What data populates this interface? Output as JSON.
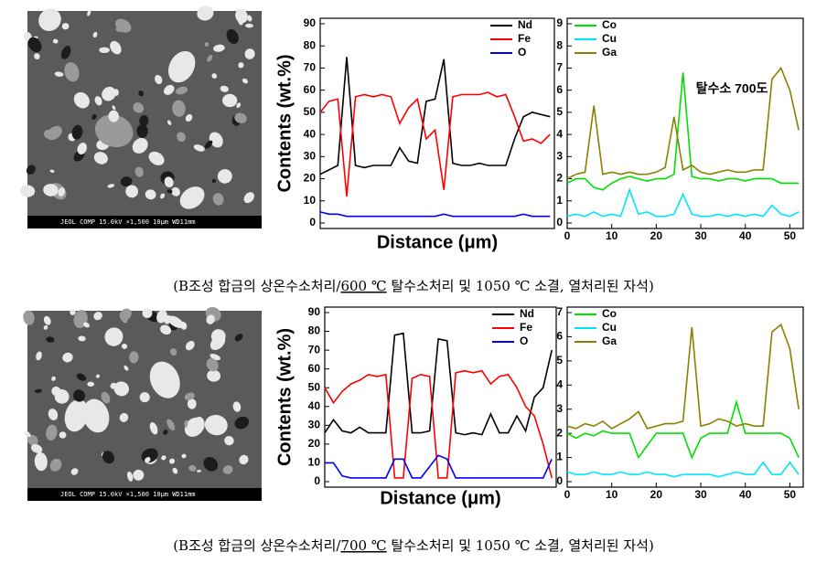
{
  "figure": {
    "sem_images": [
      {
        "label": "JEOL COMP 15.0kV ×1,500 10μm WD11mm"
      },
      {
        "label": "JEOL COMP 15.0kV ×1,500 10μm WD11mm"
      }
    ],
    "captions": [
      {
        "before": "(B조성 합금의 상온수소처리/",
        "underlined": "600 ℃",
        "after": " 탈수소처리 및 1050 ℃ 소결, 열처리된 자석)"
      },
      {
        "before": "(B조성 합금의 상온수소처리/",
        "underlined": "700 ℃",
        "after": " 탈수소처리 및 1050 ℃ 소결, 열처리된 자석)"
      }
    ]
  },
  "chart_data": [
    {
      "type": "line",
      "ylabel": "Contents (wt.%)",
      "xlabel": "Distance (μm)",
      "legend": "upper right",
      "xlim": [
        0,
        53
      ],
      "ylim": [
        0,
        90
      ],
      "yticks": [
        0,
        10,
        20,
        30,
        40,
        50,
        60,
        70,
        80,
        90
      ],
      "x": [
        0,
        2,
        4,
        6,
        8,
        10,
        12,
        14,
        16,
        18,
        20,
        22,
        24,
        26,
        28,
        30,
        32,
        34,
        36,
        38,
        40,
        42,
        44,
        46,
        48,
        50,
        52
      ],
      "series": [
        {
          "name": "Nd",
          "color": "#000000",
          "values": [
            22,
            24,
            26,
            75,
            26,
            25,
            26,
            26,
            26,
            34,
            28,
            27,
            55,
            56,
            74,
            27,
            26,
            26,
            27,
            26,
            26,
            26,
            38,
            48,
            50,
            49,
            48
          ]
        },
        {
          "name": "Fe",
          "color": "#ff0000",
          "values": [
            50,
            55,
            56,
            12,
            57,
            58,
            57,
            58,
            57,
            45,
            52,
            56,
            38,
            42,
            15,
            57,
            58,
            58,
            58,
            59,
            57,
            58,
            48,
            37,
            38,
            36,
            40
          ]
        },
        {
          "name": "O",
          "color": "#0000ff",
          "values": [
            5,
            4,
            4,
            3,
            3,
            3,
            3,
            3,
            3,
            3,
            3,
            3,
            3,
            3,
            4,
            3,
            3,
            3,
            3,
            3,
            3,
            3,
            3,
            4,
            3,
            3,
            3
          ]
        }
      ]
    },
    {
      "type": "line",
      "legend": "upper left",
      "annotation": "탈수소 700도",
      "xlim": [
        0,
        53
      ],
      "xticks": [
        0,
        10,
        20,
        30,
        40,
        50
      ],
      "ylim": [
        0,
        9
      ],
      "yticks": [
        0,
        1,
        2,
        3,
        4,
        5,
        6,
        7,
        8,
        9
      ],
      "x": [
        0,
        2,
        4,
        6,
        8,
        10,
        12,
        14,
        16,
        18,
        20,
        22,
        24,
        26,
        28,
        30,
        32,
        34,
        36,
        38,
        40,
        42,
        44,
        46,
        48,
        50,
        52
      ],
      "series": [
        {
          "name": "Co",
          "color": "#00e000",
          "values": [
            1.8,
            2.0,
            2.0,
            1.6,
            1.5,
            1.8,
            2.0,
            2.1,
            2.0,
            1.9,
            2.0,
            2.0,
            2.2,
            6.8,
            2.1,
            2.0,
            2.0,
            1.9,
            2.0,
            2.0,
            1.9,
            2.0,
            2.0,
            2.0,
            1.8,
            1.8,
            1.8
          ]
        },
        {
          "name": "Cu",
          "color": "#00e5ff",
          "values": [
            0.3,
            0.4,
            0.3,
            0.5,
            0.3,
            0.4,
            0.3,
            1.5,
            0.4,
            0.5,
            0.3,
            0.3,
            0.4,
            1.3,
            0.4,
            0.3,
            0.3,
            0.4,
            0.3,
            0.4,
            0.3,
            0.4,
            0.3,
            0.8,
            0.4,
            0.3,
            0.5
          ]
        },
        {
          "name": "Ga",
          "color": "#8b8000",
          "values": [
            2.0,
            2.2,
            2.3,
            5.3,
            2.2,
            2.3,
            2.2,
            2.3,
            2.2,
            2.2,
            2.3,
            2.5,
            4.8,
            2.4,
            2.6,
            2.3,
            2.2,
            2.3,
            2.4,
            2.3,
            2.3,
            2.4,
            2.4,
            6.5,
            7.0,
            6.0,
            4.2
          ]
        }
      ]
    },
    {
      "type": "line",
      "ylabel": "Contents (wt.%)",
      "xlabel": "Distance (μm)",
      "legend": "upper right",
      "xlim": [
        0,
        53
      ],
      "ylim": [
        0,
        90
      ],
      "yticks": [
        0,
        10,
        20,
        30,
        40,
        50,
        60,
        70,
        80,
        90
      ],
      "x": [
        0,
        2,
        4,
        6,
        8,
        10,
        12,
        14,
        16,
        18,
        20,
        22,
        24,
        26,
        28,
        30,
        32,
        34,
        36,
        38,
        40,
        42,
        44,
        46,
        48,
        50,
        52
      ],
      "series": [
        {
          "name": "Nd",
          "color": "#000000",
          "values": [
            26,
            33,
            27,
            26,
            29,
            26,
            26,
            26,
            78,
            79,
            26,
            26,
            27,
            76,
            75,
            26,
            25,
            26,
            25,
            36,
            26,
            26,
            35,
            27,
            45,
            50,
            70
          ]
        },
        {
          "name": "Fe",
          "color": "#ff0000",
          "values": [
            50,
            42,
            48,
            52,
            54,
            57,
            56,
            57,
            2,
            2,
            55,
            57,
            56,
            2,
            2,
            58,
            59,
            58,
            59,
            52,
            56,
            57,
            50,
            40,
            35,
            20,
            2
          ]
        },
        {
          "name": "O",
          "color": "#0000ff",
          "values": [
            10,
            10,
            3,
            2,
            2,
            2,
            2,
            2,
            12,
            12,
            2,
            2,
            8,
            14,
            12,
            2,
            2,
            2,
            2,
            2,
            2,
            2,
            2,
            2,
            2,
            2,
            12
          ]
        }
      ]
    },
    {
      "type": "line",
      "legend": "upper left",
      "xlim": [
        0,
        53
      ],
      "xticks": [
        0,
        10,
        20,
        30,
        40,
        50
      ],
      "ylim": [
        0,
        7
      ],
      "yticks": [
        0,
        1,
        2,
        3,
        4,
        5,
        6,
        7
      ],
      "x": [
        0,
        2,
        4,
        6,
        8,
        10,
        12,
        14,
        16,
        18,
        20,
        22,
        24,
        26,
        28,
        30,
        32,
        34,
        36,
        38,
        40,
        42,
        44,
        46,
        48,
        50,
        52
      ],
      "series": [
        {
          "name": "Co",
          "color": "#00e000",
          "values": [
            2.0,
            1.8,
            2.0,
            1.9,
            2.1,
            2.0,
            2.0,
            2.0,
            1.0,
            1.5,
            2.0,
            2.0,
            2.0,
            2.0,
            1.0,
            1.8,
            2.0,
            2.0,
            2.0,
            3.3,
            2.0,
            2.0,
            2.0,
            2.0,
            2.0,
            1.8,
            1.0
          ]
        },
        {
          "name": "Cu",
          "color": "#00e5ff",
          "values": [
            0.4,
            0.3,
            0.3,
            0.4,
            0.3,
            0.3,
            0.4,
            0.3,
            0.3,
            0.4,
            0.3,
            0.3,
            0.2,
            0.3,
            0.3,
            0.3,
            0.3,
            0.2,
            0.3,
            0.4,
            0.3,
            0.3,
            0.8,
            0.3,
            0.3,
            0.8,
            0.3
          ]
        },
        {
          "name": "Ga",
          "color": "#8b8000",
          "values": [
            2.3,
            2.2,
            2.4,
            2.3,
            2.5,
            2.2,
            2.4,
            2.6,
            2.9,
            2.2,
            2.3,
            2.4,
            2.4,
            2.5,
            6.4,
            2.3,
            2.4,
            2.6,
            2.5,
            2.3,
            2.4,
            2.3,
            2.3,
            6.2,
            6.5,
            5.5,
            3.0
          ]
        }
      ]
    }
  ]
}
